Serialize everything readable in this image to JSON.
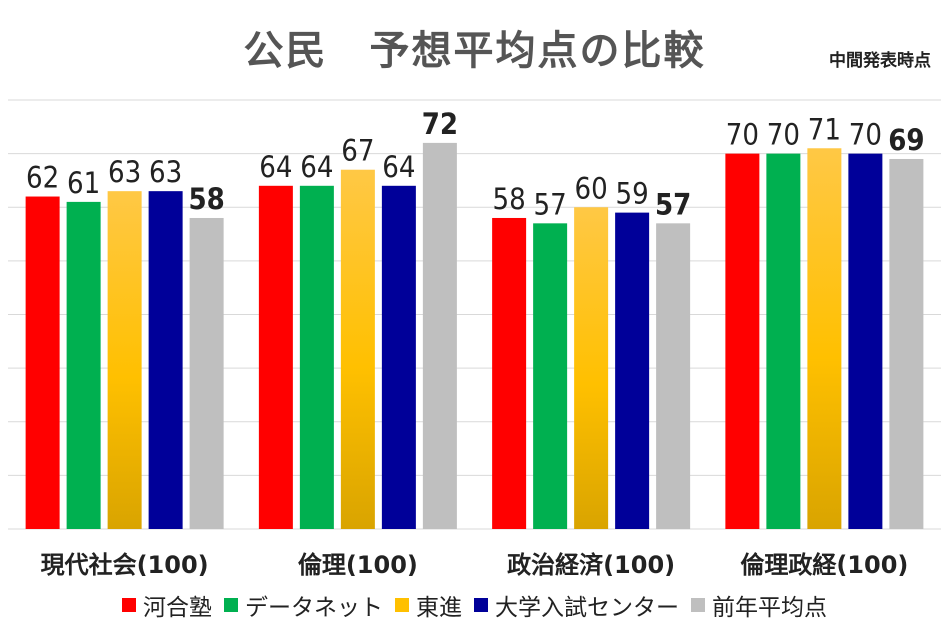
{
  "chart_data": {
    "type": "bar",
    "title": "公民　予想平均点の比較",
    "subtitle": "中間発表時点",
    "categories": [
      "現代社会(100)",
      "倫理(100)",
      "政治経済(100)",
      "倫理政経(100)"
    ],
    "series": [
      {
        "name": "河合塾",
        "values": [
          62,
          64,
          58,
          70
        ],
        "color": "#ff0000"
      },
      {
        "name": "データネット",
        "values": [
          61,
          64,
          57,
          70
        ],
        "color": "#00b050"
      },
      {
        "name": "東進",
        "values": [
          63,
          67,
          60,
          71
        ],
        "color": "#ffc000"
      },
      {
        "name": "大学入試センター",
        "values": [
          63,
          64,
          59,
          70
        ],
        "color": "#000099"
      },
      {
        "name": "前年平均点",
        "values": [
          58,
          72,
          57,
          69
        ],
        "color": "#bfbfbf"
      }
    ],
    "ylim": [
      0,
      80
    ],
    "grid": true,
    "legend": "bottom"
  }
}
